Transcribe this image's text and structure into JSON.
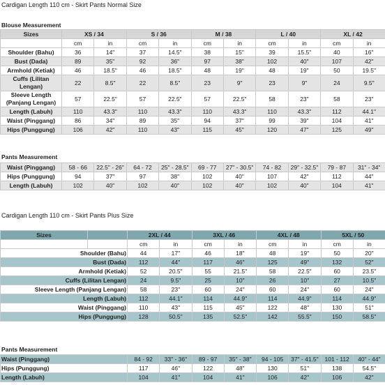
{
  "normal": {
    "title": "Cardigan Length 110 cm - Skirt Pants Normal Size",
    "blouse": {
      "heading": "Blouse Measurement",
      "header_label": "Sizes",
      "sizes": [
        "XS / 34",
        "S / 36",
        "M / 38",
        "L / 40",
        "XL / 42"
      ],
      "units": [
        "cm",
        "in"
      ],
      "rows": [
        {
          "label": "Shoulder (Bahu)",
          "values": [
            "36",
            "14\"",
            "37",
            "14.5\"",
            "38",
            "15\"",
            "39",
            "15.5\"",
            "40",
            "16\""
          ]
        },
        {
          "label": "Bust (Dada)",
          "values": [
            "89",
            "35\"",
            "92",
            "36\"",
            "97",
            "38\"",
            "102",
            "40\"",
            "107",
            "42\""
          ]
        },
        {
          "label": "Armhold (Ketiak)",
          "values": [
            "46",
            "18.5\"",
            "46",
            "18.5\"",
            "48",
            "19\"",
            "48",
            "19\"",
            "50",
            "19.5\""
          ]
        },
        {
          "label": "Cuffs (Lilitan Lengan)",
          "values": [
            "22",
            "8.5\"",
            "22",
            "8.5\"",
            "23",
            "9\"",
            "23",
            "9\"",
            "24",
            "9.5\""
          ]
        },
        {
          "label": "Sleeve Length (Panjang Lengan)",
          "values": [
            "57",
            "22.5\"",
            "57",
            "22.5\"",
            "57",
            "22.5\"",
            "58",
            "23\"",
            "58",
            "23\""
          ]
        },
        {
          "label": "Length (Labuh)",
          "values": [
            "110",
            "43.3\"",
            "110",
            "43.3\"",
            "110",
            "43.3\"",
            "110",
            "43.3\"",
            "112",
            "44.1\""
          ]
        },
        {
          "label": "Waist (Pinggang)",
          "values": [
            "86",
            "34\"",
            "89",
            "35\"",
            "94",
            "37\"",
            "99",
            "39\"",
            "104",
            "41\""
          ]
        },
        {
          "label": "Hips (Punggung)",
          "values": [
            "106",
            "42\"",
            "110",
            "43\"",
            "115",
            "45\"",
            "120",
            "47\"",
            "125",
            "49\""
          ]
        }
      ]
    },
    "pants": {
      "heading": "Pants Measurement",
      "rows": [
        {
          "label": "Waist (Pinggang)",
          "values": [
            "58 - 66",
            "22.5\" - 26\"",
            "64 - 72",
            "25\" - 28.5\"",
            "69 - 77",
            "27\" - 30.5\"",
            "74 - 82",
            "29\" - 32.5\"",
            "79 - 87",
            "31\" - 34\""
          ]
        },
        {
          "label": "Hips (Punggung)",
          "values": [
            "94",
            "37\"",
            "97",
            "38\"",
            "102",
            "40\"",
            "107",
            "42\"",
            "112",
            "44\""
          ]
        },
        {
          "label": "Length (Labuh)",
          "values": [
            "102",
            "40\"",
            "102",
            "40\"",
            "102",
            "40\"",
            "102",
            "40\"",
            "104",
            "41\""
          ]
        }
      ]
    }
  },
  "plus": {
    "title": "Cardigan Length 110 cm - Skirt Pants Plus Size",
    "blouse": {
      "header_label": "Sizes",
      "sizes": [
        "2XL / 44",
        "3XL / 46",
        "4XL / 48",
        "5XL / 50"
      ],
      "units": [
        "cm",
        "in"
      ],
      "rows": [
        {
          "label": "Shoulder (Bahu)",
          "values": [
            "44",
            "17\"",
            "46",
            "18\"",
            "48",
            "19\"",
            "50",
            "20\""
          ]
        },
        {
          "label": "Bust (Dada)",
          "values": [
            "112",
            "44\"",
            "117",
            "46\"",
            "125",
            "49\"",
            "132",
            "52\""
          ]
        },
        {
          "label": "Armhold (Ketiak)",
          "values": [
            "52",
            "20.5\"",
            "55",
            "21.5\"",
            "58",
            "22.5\"",
            "60",
            "23.5\""
          ]
        },
        {
          "label": "Cuffs (Lilitan Lengan)",
          "values": [
            "24",
            "9.5\"",
            "25",
            "10\"",
            "26",
            "10\"",
            "27",
            "10.5\""
          ]
        },
        {
          "label": "Sleeve Length (Panjang Lengan)",
          "values": [
            "58",
            "23\"",
            "60",
            "24\"",
            "60",
            "24\"",
            "60",
            "24\""
          ]
        },
        {
          "label": "Length (Labuh)",
          "values": [
            "112",
            "44.1\"",
            "114",
            "44.9\"",
            "114",
            "44.9\"",
            "114",
            "44.9\""
          ]
        },
        {
          "label": "Waist (Pinggang)",
          "values": [
            "110",
            "43\"",
            "115",
            "45\"",
            "122",
            "48\"",
            "130",
            "51\""
          ]
        },
        {
          "label": "Hips (Punggung)",
          "values": [
            "128",
            "50.5\"",
            "135",
            "52.5\"",
            "142",
            "55.5\"",
            "150",
            "58.5\""
          ]
        }
      ]
    },
    "pants": {
      "heading": "Pants Measurement",
      "rows": [
        {
          "label": "Waist (Pinggang)",
          "values": [
            "84 - 92",
            "33\" - 36\"",
            "89 - 97",
            "35\" - 38\"",
            "94 - 105",
            "37\" - 41.5\"",
            "101 - 112",
            "40\" - 44\""
          ]
        },
        {
          "label": "Hips (Punggung)",
          "values": [
            "117",
            "46\"",
            "122",
            "48\"",
            "130",
            "51\"",
            "138",
            "54.5\""
          ]
        },
        {
          "label": "Length (Labuh)",
          "values": [
            "104",
            "41\"",
            "104",
            "41\"",
            "106",
            "42\"",
            "106",
            "42\""
          ]
        }
      ]
    }
  }
}
